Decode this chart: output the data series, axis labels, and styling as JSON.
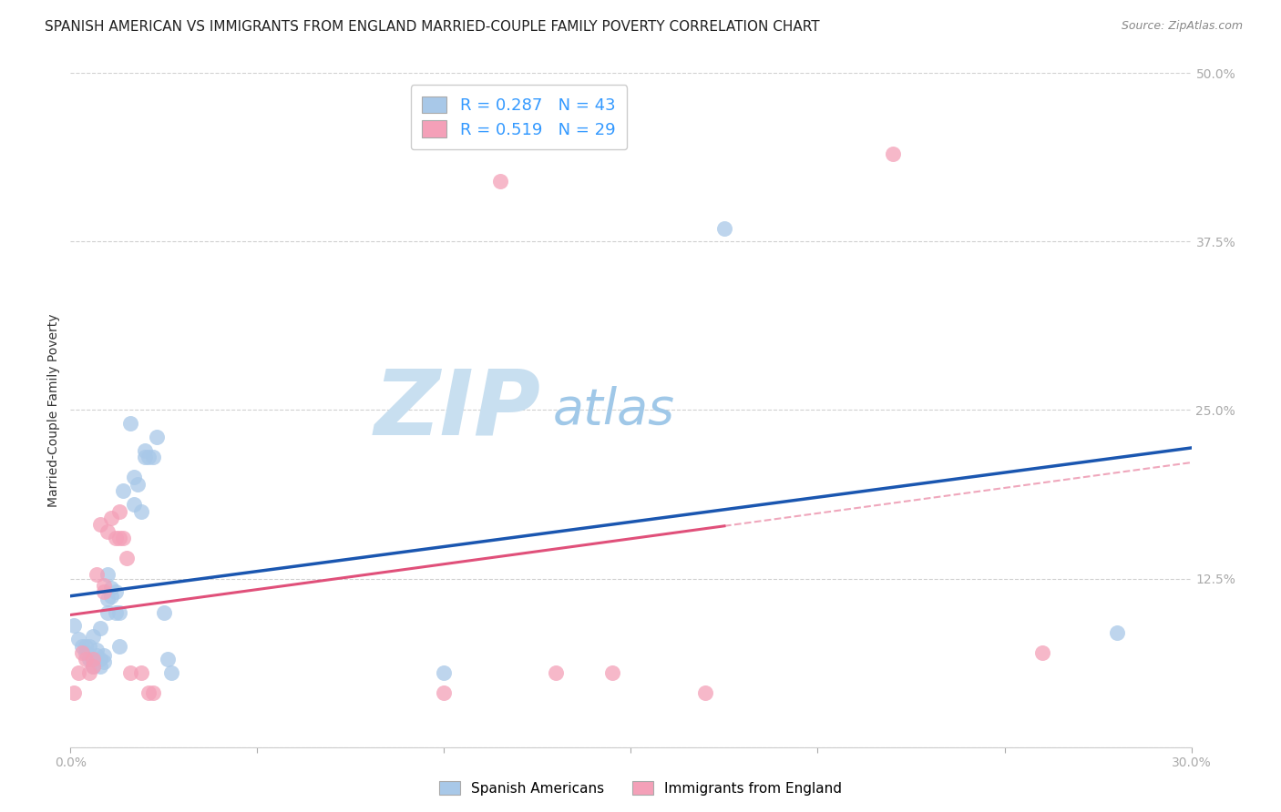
{
  "title": "SPANISH AMERICAN VS IMMIGRANTS FROM ENGLAND MARRIED-COUPLE FAMILY POVERTY CORRELATION CHART",
  "source": "Source: ZipAtlas.com",
  "ylabel": "Married-Couple Family Poverty",
  "xlim": [
    0.0,
    0.3
  ],
  "ylim": [
    0.0,
    0.5
  ],
  "xticks": [
    0.0,
    0.05,
    0.1,
    0.15,
    0.2,
    0.25,
    0.3
  ],
  "yticks": [
    0.0,
    0.125,
    0.25,
    0.375,
    0.5
  ],
  "ytick_labels": [
    "",
    "12.5%",
    "25.0%",
    "37.5%",
    "50.0%"
  ],
  "xtick_labels": [
    "0.0%",
    "",
    "",
    "",
    "",
    "",
    "30.0%"
  ],
  "blue_R": 0.287,
  "blue_N": 43,
  "pink_R": 0.519,
  "pink_N": 29,
  "blue_color": "#a8c8e8",
  "pink_color": "#f4a0b8",
  "blue_line_color": "#1a56b0",
  "pink_line_color": "#e0507a",
  "blue_scatter": [
    [
      0.001,
      0.09
    ],
    [
      0.002,
      0.08
    ],
    [
      0.003,
      0.075
    ],
    [
      0.004,
      0.075
    ],
    [
      0.004,
      0.07
    ],
    [
      0.005,
      0.075
    ],
    [
      0.005,
      0.065
    ],
    [
      0.006,
      0.082
    ],
    [
      0.006,
      0.065
    ],
    [
      0.006,
      0.06
    ],
    [
      0.007,
      0.072
    ],
    [
      0.007,
      0.068
    ],
    [
      0.008,
      0.088
    ],
    [
      0.008,
      0.065
    ],
    [
      0.008,
      0.06
    ],
    [
      0.009,
      0.068
    ],
    [
      0.009,
      0.063
    ],
    [
      0.01,
      0.128
    ],
    [
      0.01,
      0.11
    ],
    [
      0.01,
      0.1
    ],
    [
      0.011,
      0.118
    ],
    [
      0.011,
      0.112
    ],
    [
      0.012,
      0.115
    ],
    [
      0.012,
      0.1
    ],
    [
      0.013,
      0.1
    ],
    [
      0.013,
      0.075
    ],
    [
      0.014,
      0.19
    ],
    [
      0.016,
      0.24
    ],
    [
      0.017,
      0.2
    ],
    [
      0.017,
      0.18
    ],
    [
      0.018,
      0.195
    ],
    [
      0.019,
      0.175
    ],
    [
      0.02,
      0.22
    ],
    [
      0.02,
      0.215
    ],
    [
      0.021,
      0.215
    ],
    [
      0.022,
      0.215
    ],
    [
      0.023,
      0.23
    ],
    [
      0.025,
      0.1
    ],
    [
      0.026,
      0.065
    ],
    [
      0.027,
      0.055
    ],
    [
      0.1,
      0.055
    ],
    [
      0.175,
      0.385
    ],
    [
      0.28,
      0.085
    ]
  ],
  "pink_scatter": [
    [
      0.001,
      0.04
    ],
    [
      0.002,
      0.055
    ],
    [
      0.003,
      0.07
    ],
    [
      0.004,
      0.065
    ],
    [
      0.005,
      0.055
    ],
    [
      0.006,
      0.065
    ],
    [
      0.006,
      0.06
    ],
    [
      0.007,
      0.128
    ],
    [
      0.008,
      0.165
    ],
    [
      0.009,
      0.12
    ],
    [
      0.009,
      0.115
    ],
    [
      0.01,
      0.16
    ],
    [
      0.011,
      0.17
    ],
    [
      0.012,
      0.155
    ],
    [
      0.013,
      0.175
    ],
    [
      0.013,
      0.155
    ],
    [
      0.014,
      0.155
    ],
    [
      0.015,
      0.14
    ],
    [
      0.016,
      0.055
    ],
    [
      0.019,
      0.055
    ],
    [
      0.021,
      0.04
    ],
    [
      0.022,
      0.04
    ],
    [
      0.1,
      0.04
    ],
    [
      0.115,
      0.42
    ],
    [
      0.13,
      0.055
    ],
    [
      0.145,
      0.055
    ],
    [
      0.17,
      0.04
    ],
    [
      0.22,
      0.44
    ],
    [
      0.26,
      0.07
    ]
  ],
  "watermark_ZIP": "ZIP",
  "watermark_atlas": "atlas",
  "watermark_color_ZIP": "#c8dff0",
  "watermark_color_atlas": "#a0c8e8",
  "grid_color": "#d0d0d0",
  "tick_color": "#3399ff",
  "title_fontsize": 11,
  "label_fontsize": 10,
  "tick_fontsize": 10,
  "legend_fontsize": 13
}
